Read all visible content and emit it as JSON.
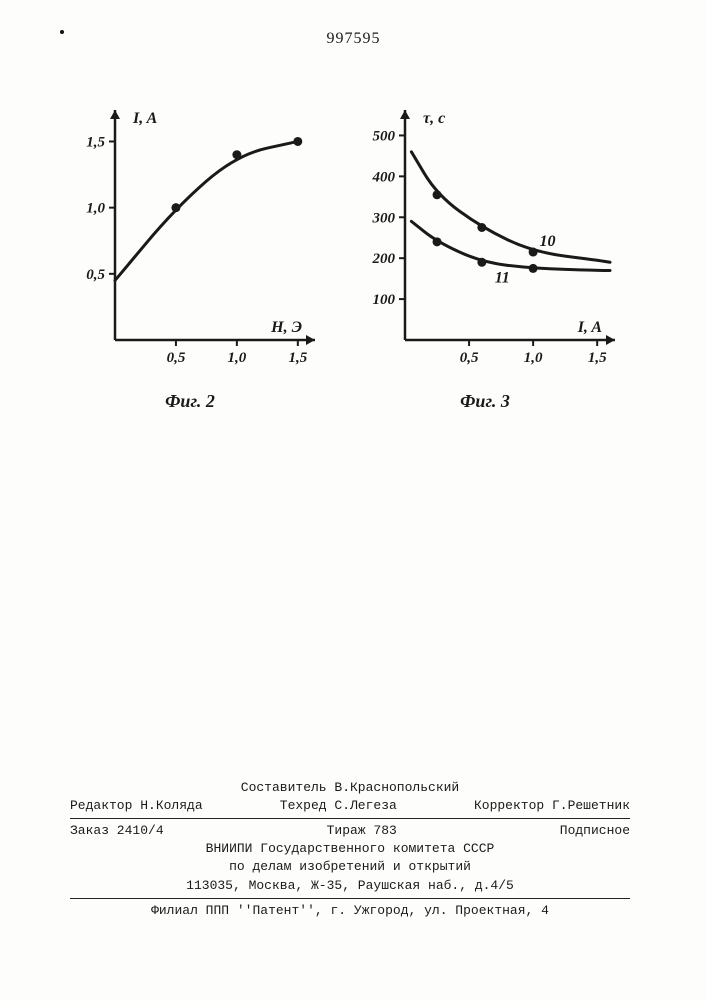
{
  "page_number": "997595",
  "chart_left": {
    "type": "line",
    "caption": "Фиг. 2",
    "y_label": "I, A",
    "x_label": "H, Э",
    "x_ticks": [
      "0,5",
      "1,0",
      "1,5"
    ],
    "y_ticks": [
      "0,5",
      "1,0",
      "1,5"
    ],
    "xlim": [
      0,
      1.6
    ],
    "ylim": [
      0,
      1.7
    ],
    "series": [
      {
        "points": [
          [
            0,
            0.45
          ],
          [
            0.5,
            1.0
          ],
          [
            1.0,
            1.4
          ],
          [
            1.5,
            1.5
          ]
        ],
        "markers": [
          [
            0.5,
            1.0
          ],
          [
            1.0,
            1.4
          ],
          [
            1.5,
            1.5
          ]
        ]
      }
    ],
    "line_color": "#1a1a1a",
    "line_width": 3,
    "marker_radius": 4.5,
    "axis_width": 2.5,
    "background": "#fdfdfb",
    "font_size_labels": 16,
    "font_size_ticks": 15
  },
  "chart_right": {
    "type": "line",
    "caption": "Фиг. 3",
    "y_label": "τ, c",
    "x_label": "I, A",
    "x_ticks": [
      "0,5",
      "1,0",
      "1,5"
    ],
    "y_ticks": [
      "100",
      "200",
      "300",
      "400",
      "500"
    ],
    "xlim": [
      0,
      1.6
    ],
    "ylim": [
      0,
      550
    ],
    "series": [
      {
        "label": "10",
        "label_pos": [
          1.05,
          230
        ],
        "points": [
          [
            0.05,
            460
          ],
          [
            0.25,
            355
          ],
          [
            0.6,
            275
          ],
          [
            1.0,
            215
          ],
          [
            1.5,
            195
          ],
          [
            1.6,
            190
          ]
        ],
        "markers": [
          [
            0.25,
            355
          ],
          [
            0.6,
            275
          ],
          [
            1.0,
            215
          ]
        ]
      },
      {
        "label": "11",
        "label_pos": [
          0.7,
          140
        ],
        "points": [
          [
            0.05,
            290
          ],
          [
            0.25,
            240
          ],
          [
            0.6,
            190
          ],
          [
            1.0,
            175
          ],
          [
            1.5,
            170
          ],
          [
            1.6,
            170
          ]
        ],
        "markers": [
          [
            0.25,
            240
          ],
          [
            0.6,
            190
          ],
          [
            1.0,
            175
          ]
        ]
      }
    ],
    "line_color": "#1a1a1a",
    "line_width": 3,
    "marker_radius": 4.5,
    "axis_width": 2.5,
    "background": "#fdfdfb",
    "font_size_labels": 16,
    "font_size_ticks": 15
  },
  "footer": {
    "compiler_line": "Составитель В.Краснопольский",
    "editor": "Редактор Н.Коляда",
    "techred": "Техред С.Легеза",
    "corrector": "Корректор Г.Решетник",
    "order": "Заказ 2410/4",
    "tirazh": "Тираж 783",
    "podpisnoe": "Подписное",
    "org1": "ВНИИПИ Государственного комитета СССР",
    "org2": "по делам изобретений и открытий",
    "address": "113035, Москва, Ж-35, Раушская наб., д.4/5",
    "filial": "Филиал ППП ''Патент'', г. Ужгород, ул. Проектная, 4"
  }
}
